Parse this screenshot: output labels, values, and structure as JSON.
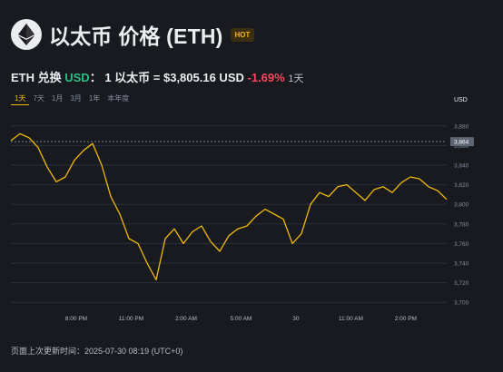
{
  "header": {
    "logo_icon": "ethereum-icon",
    "title": "以太币 价格 (ETH)",
    "badge": "HOT"
  },
  "price_line": {
    "pair_prefix": "ETH 兑换 ",
    "quote_currency": "USD",
    "separator": "：",
    "rate_text": "1 以太币 = $3,805.16 USD",
    "change": "-1.69%",
    "change_period": "1天"
  },
  "tabs": [
    "1天",
    "7天",
    "1月",
    "3月",
    "1年",
    "本年度"
  ],
  "active_tab": "1天",
  "chart_data": {
    "type": "line",
    "title": "",
    "xlabel": "",
    "ylabel": "USD",
    "ylim": [
      3690,
      3890
    ],
    "yticks": [
      "3,880",
      "3,860",
      "3,840",
      "3,820",
      "3,800",
      "3,780",
      "3,760",
      "3,740",
      "3,720",
      "3,700"
    ],
    "xticks": [
      "8:00 PM",
      "11:00 PM",
      "2:00 AM",
      "5:00 AM",
      "30",
      "11:00 AM",
      "2:00 PM"
    ],
    "reference_value": "3,864",
    "line_color": "#f0b90b",
    "grid": true,
    "series": [
      {
        "x": [
          0,
          0.5,
          1,
          1.5,
          2,
          2.5,
          3,
          3.5,
          4,
          4.5,
          5,
          5.5,
          6,
          6.5,
          7,
          7.5,
          8,
          8.5,
          9,
          9.5,
          10,
          10.5,
          11,
          11.5,
          12,
          12.5,
          13,
          13.5,
          14,
          14.5,
          15,
          15.5,
          16,
          16.5,
          17,
          17.5,
          18,
          18.5,
          19,
          19.5,
          20,
          20.5,
          21,
          21.5,
          22,
          22.5,
          23,
          23.5,
          24
        ],
        "y": [
          3865,
          3872,
          3868,
          3858,
          3838,
          3823,
          3828,
          3845,
          3855,
          3862,
          3840,
          3808,
          3790,
          3765,
          3760,
          3740,
          3723,
          3765,
          3775,
          3760,
          3772,
          3778,
          3762,
          3752,
          3768,
          3775,
          3778,
          3788,
          3795,
          3790,
          3785,
          3760,
          3770,
          3800,
          3812,
          3808,
          3818,
          3820,
          3812,
          3804,
          3815,
          3818,
          3812,
          3822,
          3828,
          3826,
          3818,
          3814,
          3805
        ]
      }
    ]
  },
  "footer": {
    "updated_label": "页面上次更新时间：",
    "updated_time": "2025-07-30 08:19 (UTC+0)"
  }
}
